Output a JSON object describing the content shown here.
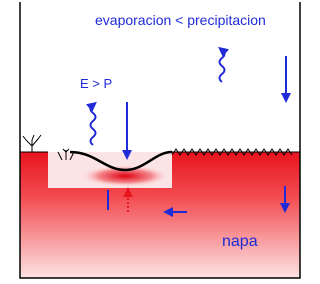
{
  "labels": {
    "top": "evaporacion < precipitacion",
    "left": "E > P",
    "groundwater": "napa"
  }
}
